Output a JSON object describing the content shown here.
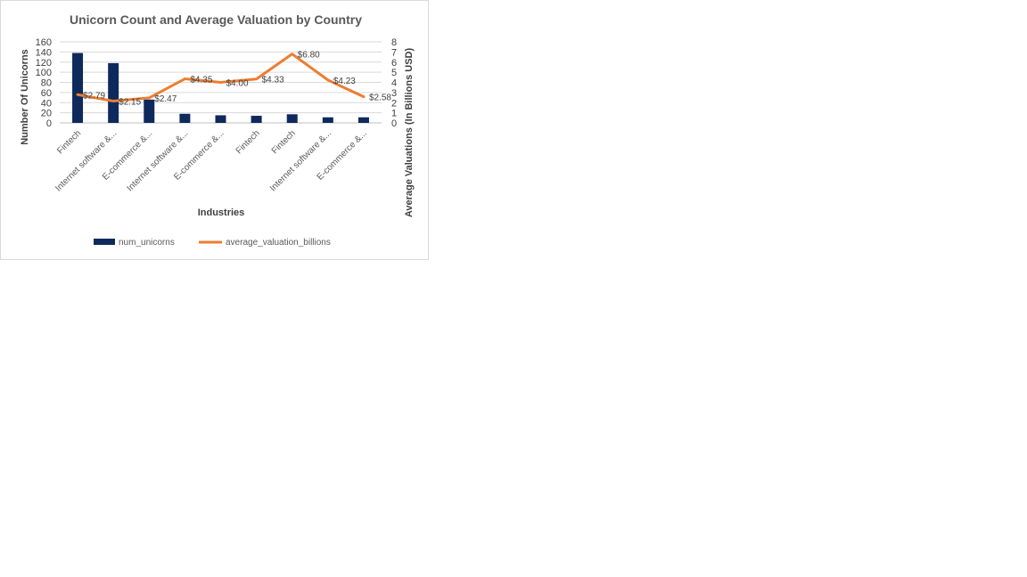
{
  "chart_data": {
    "type": "bar",
    "title": "Unicorn Count and Average Valuation by Country",
    "xlabel": "Industries",
    "ylabel": "Number Of Unicorns",
    "y2label": "Average Valuations (In  Billions  USD)",
    "categories": [
      "Fintech",
      "Internet software &...",
      "E-commerce &...",
      "Internet software &...",
      "E-commerce &...",
      "Fintech",
      "Fintech",
      "Internet software &...",
      "E-commerce &..."
    ],
    "ylim": [
      0,
      160
    ],
    "yticks": [
      0,
      20,
      40,
      60,
      80,
      100,
      120,
      140,
      160
    ],
    "y2lim": [
      0,
      8
    ],
    "y2ticks": [
      0,
      1,
      2,
      3,
      4,
      5,
      6,
      7,
      8
    ],
    "grid": true,
    "legend_position": "bottom",
    "series": [
      {
        "name": "num_unicorns",
        "type": "bar",
        "axis": "left",
        "color": "#0e2a5c",
        "values": [
          138,
          118,
          46,
          18,
          15,
          14,
          17,
          11,
          11
        ]
      },
      {
        "name": "average_valuation_billions",
        "type": "line",
        "axis": "right",
        "color": "#ed7d31",
        "values": [
          2.79,
          2.15,
          2.47,
          4.35,
          4.0,
          4.33,
          6.8,
          4.23,
          2.58
        ],
        "labels": [
          "$2.79",
          "$2.15",
          "$2.47",
          "$4.35",
          "$4.00",
          "$4.33",
          "$6.80",
          "$4.23",
          "$2.58"
        ]
      }
    ]
  }
}
